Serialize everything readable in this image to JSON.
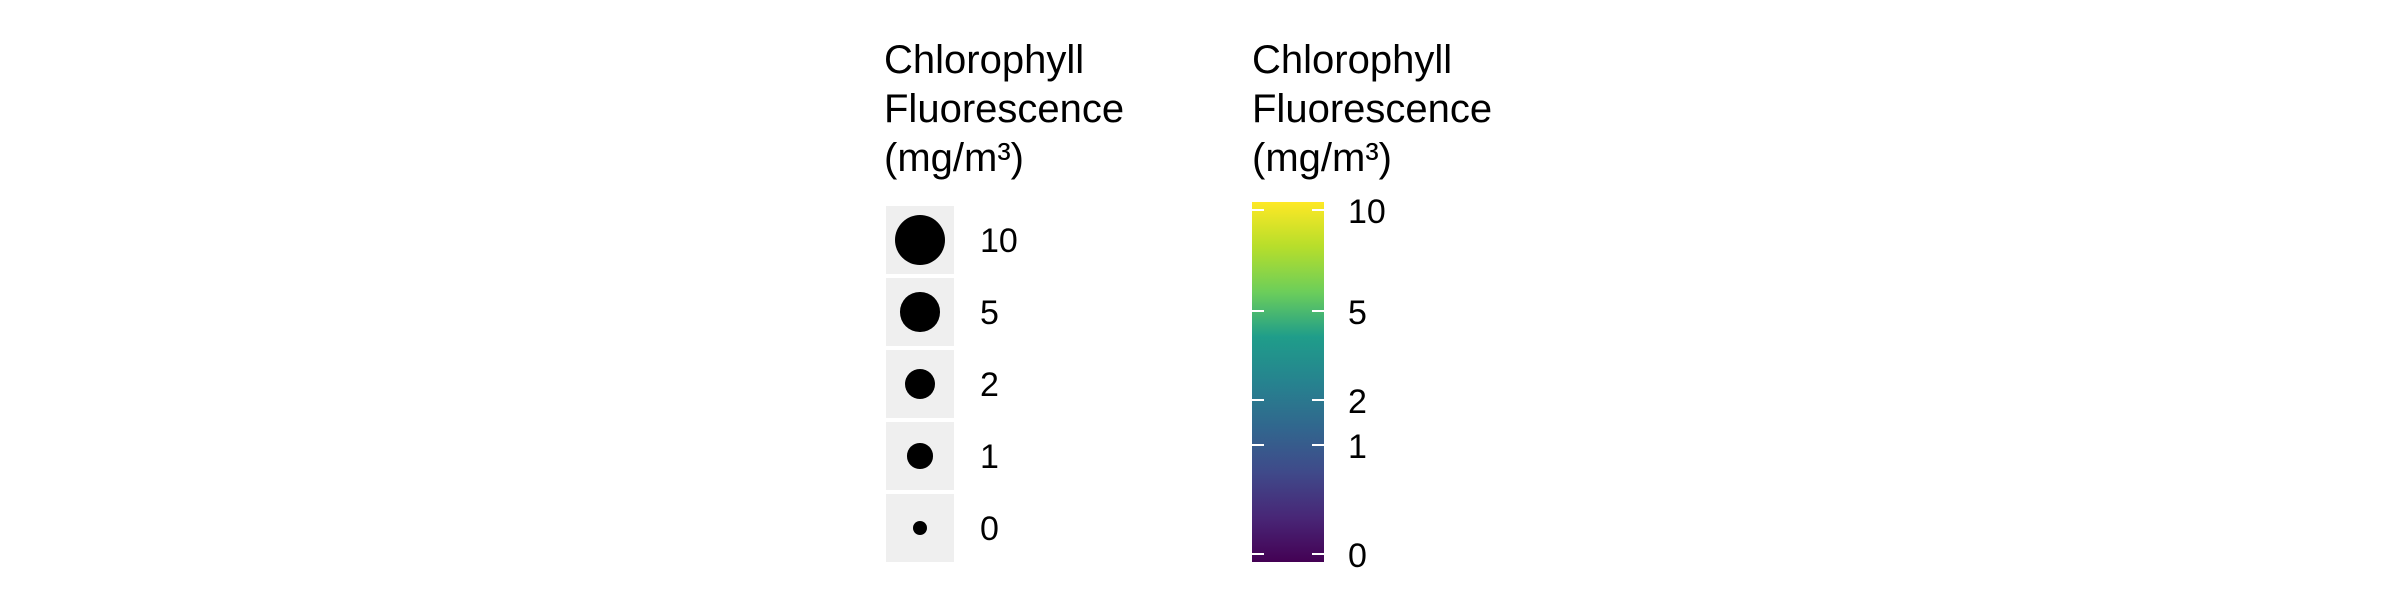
{
  "chart_data": [
    {
      "type": "legend-size",
      "title": [
        "Chlorophyll",
        "Fluorescence",
        "(mg/m³)"
      ],
      "keys": [
        {
          "label": "10",
          "value": 10
        },
        {
          "label": "5",
          "value": 5
        },
        {
          "label": "2",
          "value": 2
        },
        {
          "label": "1",
          "value": 1
        },
        {
          "label": "0",
          "value": 0
        }
      ],
      "colors": {
        "point": "#000000",
        "key_background": "#efefef"
      }
    },
    {
      "type": "legend-colorbar",
      "title": [
        "Chlorophyll",
        "Fluorescence",
        "(mg/m³)"
      ],
      "scale": "sqrt",
      "range": [
        0,
        10
      ],
      "palette": "viridis",
      "ticks": [
        {
          "label": "10",
          "value": 10
        },
        {
          "label": "5",
          "value": 5
        },
        {
          "label": "2",
          "value": 2
        },
        {
          "label": "1",
          "value": 1
        },
        {
          "label": "0",
          "value": 0
        }
      ],
      "colors": [
        "#440154",
        "#482777",
        "#3f4a8a",
        "#31678e",
        "#26838f",
        "#1f9d8a",
        "#6cce5a",
        "#b6de2b",
        "#fee825"
      ]
    }
  ]
}
